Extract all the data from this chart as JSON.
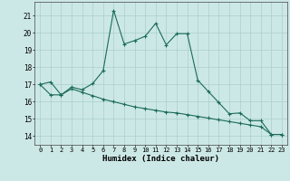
{
  "xlabel": "Humidex (Indice chaleur)",
  "x_values": [
    0,
    1,
    2,
    3,
    4,
    5,
    6,
    7,
    8,
    9,
    10,
    11,
    12,
    13,
    14,
    15,
    16,
    17,
    18,
    19,
    20,
    21,
    22,
    23
  ],
  "series1": [
    17.0,
    17.15,
    16.4,
    16.85,
    16.7,
    17.05,
    17.8,
    21.3,
    19.35,
    19.55,
    19.8,
    20.55,
    19.3,
    19.95,
    19.95,
    17.25,
    16.6,
    15.95,
    15.3,
    15.35,
    14.9,
    14.9,
    14.1,
    14.1
  ],
  "series2": [
    17.0,
    16.4,
    16.4,
    16.75,
    16.55,
    16.35,
    16.15,
    16.0,
    15.85,
    15.7,
    15.6,
    15.5,
    15.4,
    15.35,
    15.25,
    15.15,
    15.05,
    14.95,
    14.85,
    14.75,
    14.65,
    14.55,
    14.1,
    14.1
  ],
  "line_color": "#1a6b5a",
  "bg_color": "#cce8e6",
  "grid_color": "#aacfcc",
  "ylim": [
    13.5,
    21.8
  ],
  "yticks": [
    14,
    15,
    16,
    17,
    18,
    19,
    20,
    21
  ],
  "xticks": [
    0,
    1,
    2,
    3,
    4,
    5,
    6,
    7,
    8,
    9,
    10,
    11,
    12,
    13,
    14,
    15,
    16,
    17,
    18,
    19,
    20,
    21,
    22,
    23
  ]
}
